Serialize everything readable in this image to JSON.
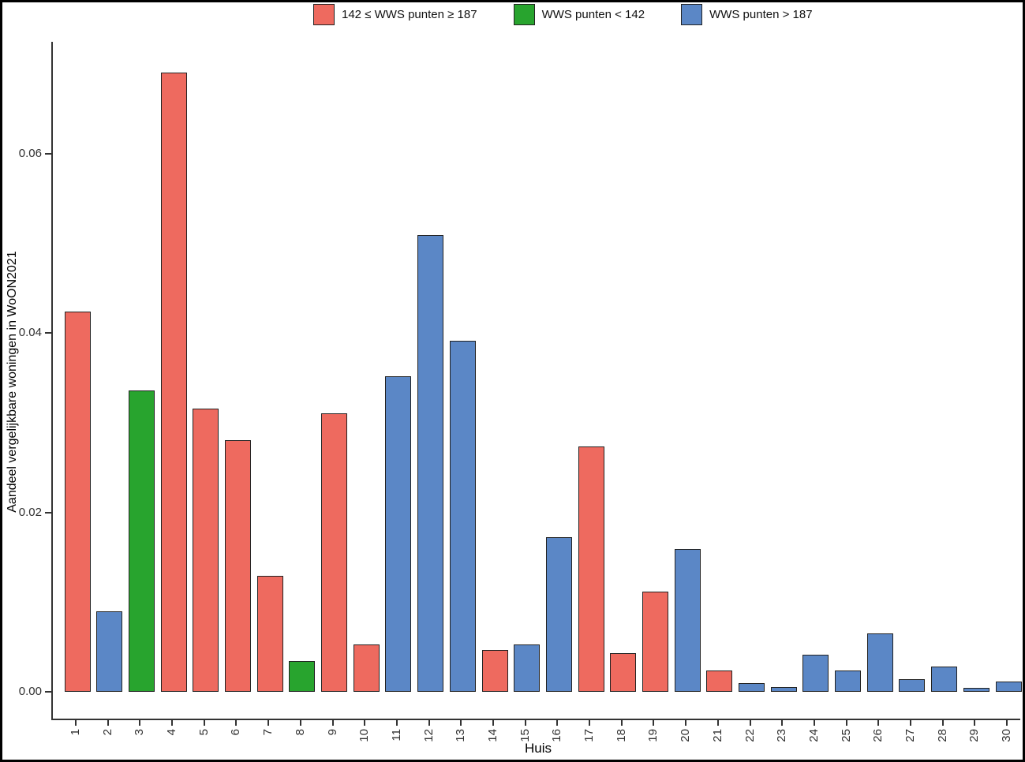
{
  "figure": {
    "background": "#ffffff",
    "border_color": "#000000",
    "axis_color": "#333333"
  },
  "legend": {
    "position": "top",
    "items": [
      {
        "key": "mid",
        "label": "142 ≤ WWS punten ≥ 187",
        "color": "#ee6a5f"
      },
      {
        "key": "low",
        "label": "WWS punten < 142",
        "color": "#28a42e"
      },
      {
        "key": "high",
        "label": "WWS punten > 187",
        "color": "#5b87c6"
      }
    ]
  },
  "chart_data": {
    "type": "bar",
    "title": "",
    "xlabel": "Huis",
    "ylabel": "Aandeel vergelijkbare woningen in WoON2021",
    "ylim": [
      0,
      0.0725
    ],
    "y_ticks": [
      0,
      0.02,
      0.04,
      0.06
    ],
    "y_tick_labels": [
      "0.00",
      "0.02",
      "0.04",
      "0.06"
    ],
    "grid": false,
    "legend_position": "top",
    "bar_outline": "#222222",
    "categories": [
      "1",
      "2",
      "3",
      "4",
      "5",
      "6",
      "7",
      "8",
      "9",
      "10",
      "11",
      "12",
      "13",
      "14",
      "15",
      "16",
      "17",
      "18",
      "19",
      "20",
      "21",
      "22",
      "23",
      "24",
      "25",
      "26",
      "27",
      "28",
      "29",
      "30"
    ],
    "values": [
      0.0424,
      0.009,
      0.0336,
      0.069,
      0.0316,
      0.028,
      0.0129,
      0.0034,
      0.031,
      0.0053,
      0.0352,
      0.0509,
      0.0391,
      0.0047,
      0.0053,
      0.0172,
      0.0273,
      0.0043,
      0.0112,
      0.0159,
      0.0024,
      0.001,
      0.0005,
      0.0041,
      0.0024,
      0.0065,
      0.0014,
      0.0028,
      0.0004,
      0.0011
    ],
    "groups": [
      "mid",
      "high",
      "low",
      "mid",
      "mid",
      "mid",
      "mid",
      "low",
      "mid",
      "mid",
      "high",
      "high",
      "high",
      "mid",
      "high",
      "high",
      "mid",
      "mid",
      "mid",
      "high",
      "mid",
      "high",
      "high",
      "high",
      "high",
      "high",
      "high",
      "high",
      "high",
      "high"
    ]
  }
}
